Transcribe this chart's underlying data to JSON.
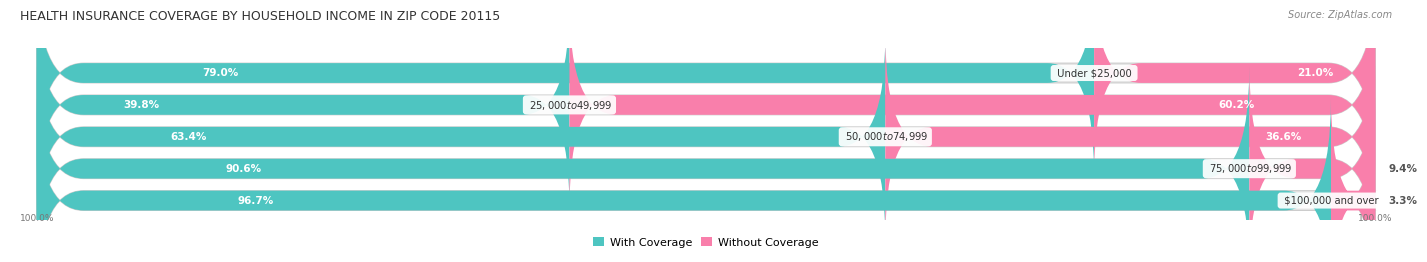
{
  "title": "HEALTH INSURANCE COVERAGE BY HOUSEHOLD INCOME IN ZIP CODE 20115",
  "source": "Source: ZipAtlas.com",
  "categories": [
    "Under $25,000",
    "$25,000 to $49,999",
    "$50,000 to $74,999",
    "$75,000 to $99,999",
    "$100,000 and over"
  ],
  "with_coverage": [
    79.0,
    39.8,
    63.4,
    90.6,
    96.7
  ],
  "without_coverage": [
    21.0,
    60.2,
    36.6,
    9.4,
    3.3
  ],
  "color_with": "#4EC5C1",
  "color_without": "#F97FAB",
  "bar_bg_color": "#E6E6E6",
  "background_color": "#FFFFFF",
  "title_fontsize": 9.0,
  "label_fontsize": 7.5,
  "source_fontsize": 7.0,
  "legend_fontsize": 8.0,
  "bar_height": 0.62,
  "n_bars": 5
}
